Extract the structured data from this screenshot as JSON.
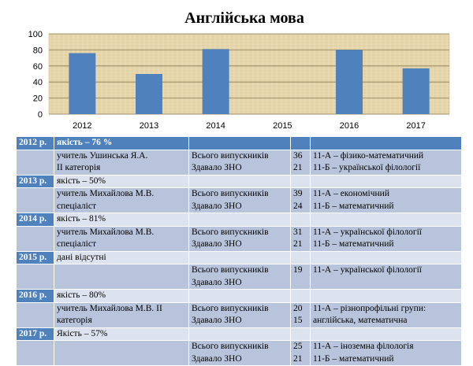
{
  "chart_data": {
    "type": "bar",
    "title": "Англійська мова",
    "categories": [
      "2012",
      "2013",
      "2014",
      "2015",
      "2016",
      "2017"
    ],
    "values": [
      76,
      50,
      81,
      0,
      80,
      57
    ],
    "ylim": [
      0,
      100
    ],
    "yticks": [
      "0",
      "20",
      "40",
      "60",
      "80",
      "100"
    ],
    "grid": true,
    "legend": "none",
    "bar_color": "#4f81bd",
    "plot_background": "#e8d9b0"
  },
  "table": {
    "blocks": [
      {
        "year": "2012 р.",
        "quality": "якість – 76 %",
        "teacher": [
          "учитель Ушинська Я.А.",
          "ІІ категорія"
        ],
        "stats_labels": [
          "Всього випускників",
          "Здавало ЗНО"
        ],
        "stats_values": [
          "36",
          "21"
        ],
        "classes": [
          "11-А – фізико-математичний",
          "11-Б – української філології"
        ]
      },
      {
        "year": "2013 р.",
        "quality": "якість – 50%",
        "teacher": [
          "учитель Михайлова М.В.",
          "спеціаліст"
        ],
        "stats_labels": [
          "Всього випускників",
          "Здавало ЗНО"
        ],
        "stats_values": [
          "39",
          "24"
        ],
        "classes": [
          "11-А – економічний",
          "11-Б – математичний"
        ]
      },
      {
        "year": "2014 р.",
        "quality": "якість – 81%",
        "teacher": [
          "учитель Михайлова М.В.",
          "спеціаліст"
        ],
        "stats_labels": [
          "Всього випускників",
          "Здавало ЗНО"
        ],
        "stats_values": [
          "31",
          "21"
        ],
        "classes": [
          "11-А – української філології",
          "11-Б – математичний"
        ]
      },
      {
        "year": "2015 р.",
        "quality": "дані відсутні",
        "teacher": [
          "",
          ""
        ],
        "stats_labels": [
          "Всього випускників",
          "Здавало ЗНО"
        ],
        "stats_values": [
          "19",
          ""
        ],
        "classes": [
          "11-А – української філології",
          ""
        ]
      },
      {
        "year": "2016 р.",
        "quality": "якість – 80%",
        "teacher": [
          "учитель Михайлова М.В. ІІ",
          "категорія"
        ],
        "stats_labels": [
          "Всього випускників",
          "Здавало ЗНО"
        ],
        "stats_values": [
          "20",
          "15"
        ],
        "classes": [
          "11-А – різнопрофільні групи:",
          "англійська, математична"
        ]
      },
      {
        "year": "2017 р.",
        "quality": "Якість – 57%",
        "teacher": [
          "",
          ""
        ],
        "stats_labels": [
          "Всього випускників",
          "Здавало ЗНО"
        ],
        "stats_values": [
          "25",
          "21"
        ],
        "classes": [
          "11-А – іноземна філологія",
          "11-Б – математичний"
        ]
      }
    ]
  }
}
